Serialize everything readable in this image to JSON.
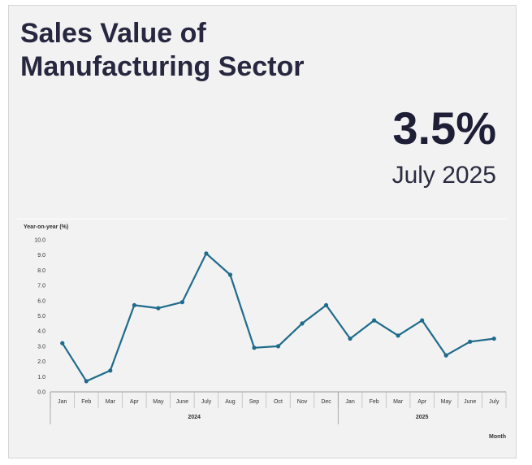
{
  "card": {
    "title_line1": "Sales Value of",
    "title_line2": "Manufacturing Sector",
    "headline_value": "3.5%",
    "headline_period": "July 2025"
  },
  "colors": {
    "title": "#27283f",
    "line": "#1f6b8c",
    "marker": "#1f6b8c",
    "background": "#f2f2f2"
  },
  "chart_data": {
    "type": "line",
    "title": "",
    "ylabel": "Year-on-year (%)",
    "xlabel": "Month",
    "ylim": [
      0,
      10
    ],
    "yticks": [
      "0.0",
      "1.0",
      "2.0",
      "3.0",
      "4.0",
      "5.0",
      "6.0",
      "7.0",
      "8.0",
      "9.0",
      "10.0"
    ],
    "categories": [
      "Jan",
      "Feb",
      "Mar",
      "Apr",
      "May",
      "June",
      "July",
      "Aug",
      "Sep",
      "Oct",
      "Nov",
      "Dec",
      "Jan",
      "Feb",
      "Mar",
      "Apr",
      "May",
      "June",
      "July"
    ],
    "year_groups": [
      {
        "label": "2024",
        "months": 12
      },
      {
        "label": "2025",
        "months": 7
      }
    ],
    "series": [
      {
        "values": [
          3.2,
          0.7,
          1.4,
          5.7,
          5.5,
          5.9,
          9.1,
          7.7,
          2.9,
          3.0,
          4.5,
          5.7,
          3.5,
          4.7,
          3.7,
          4.7,
          2.4,
          3.3,
          3.5
        ]
      }
    ],
    "grid": false,
    "legend": "none"
  }
}
